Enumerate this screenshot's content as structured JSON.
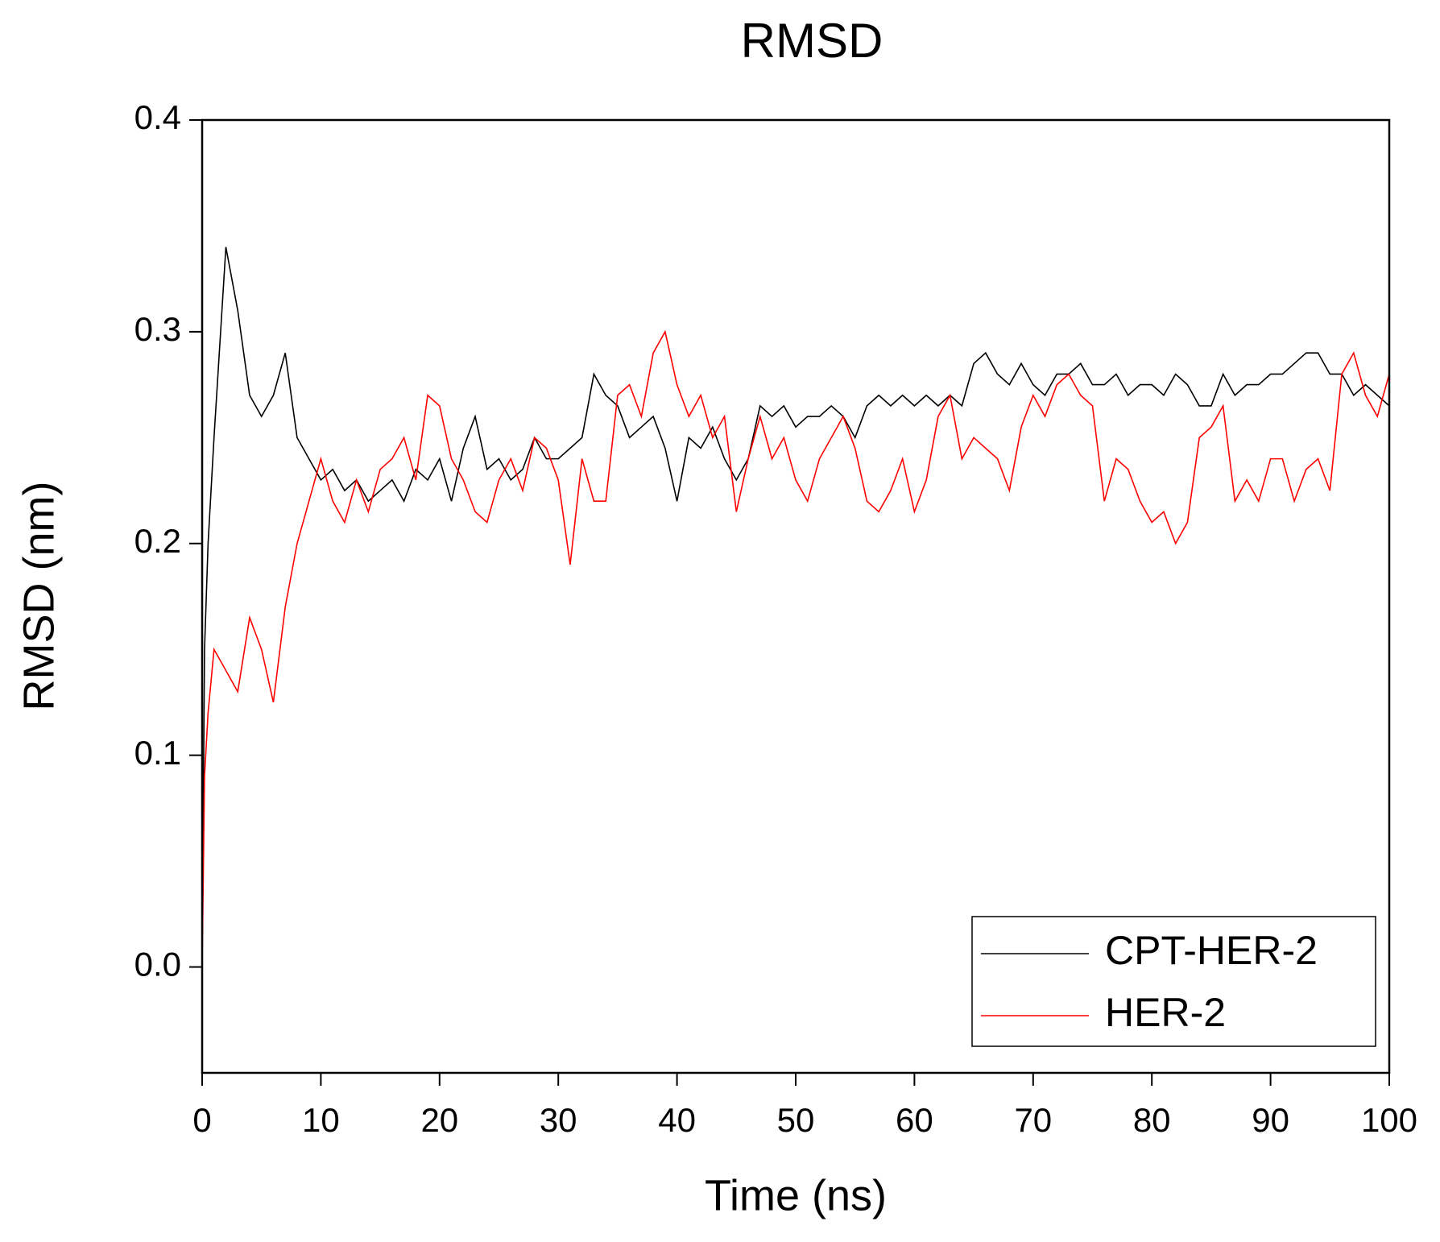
{
  "chart_data": {
    "type": "line",
    "title": "RMSD",
    "xlabel": "Time (ns)",
    "ylabel": "RMSD (nm)",
    "x": [
      0,
      0.2,
      0.5,
      1,
      2,
      3,
      4,
      5,
      6,
      7,
      8,
      9,
      10,
      11,
      12,
      13,
      14,
      15,
      16,
      17,
      18,
      19,
      20,
      21,
      22,
      23,
      24,
      25,
      26,
      27,
      28,
      29,
      30,
      31,
      32,
      33,
      34,
      35,
      36,
      37,
      38,
      39,
      40,
      41,
      42,
      43,
      44,
      45,
      46,
      47,
      48,
      49,
      50,
      51,
      52,
      53,
      54,
      55,
      56,
      57,
      58,
      59,
      60,
      61,
      62,
      63,
      64,
      65,
      66,
      67,
      68,
      69,
      70,
      71,
      72,
      73,
      74,
      75,
      76,
      77,
      78,
      79,
      80,
      81,
      82,
      83,
      84,
      85,
      86,
      87,
      88,
      89,
      90,
      91,
      92,
      93,
      94,
      95,
      96,
      97,
      98,
      99,
      100
    ],
    "series": [
      {
        "name": "CPT-HER-2",
        "color": "#000000",
        "values": [
          0.0,
          0.15,
          0.2,
          0.25,
          0.34,
          0.31,
          0.27,
          0.26,
          0.27,
          0.29,
          0.25,
          0.24,
          0.23,
          0.235,
          0.225,
          0.23,
          0.22,
          0.225,
          0.23,
          0.22,
          0.235,
          0.23,
          0.24,
          0.22,
          0.245,
          0.26,
          0.235,
          0.24,
          0.23,
          0.235,
          0.25,
          0.24,
          0.24,
          0.245,
          0.25,
          0.28,
          0.27,
          0.265,
          0.25,
          0.255,
          0.26,
          0.245,
          0.22,
          0.25,
          0.245,
          0.255,
          0.24,
          0.23,
          0.24,
          0.265,
          0.26,
          0.265,
          0.255,
          0.26,
          0.26,
          0.265,
          0.26,
          0.25,
          0.265,
          0.27,
          0.265,
          0.27,
          0.265,
          0.27,
          0.265,
          0.27,
          0.265,
          0.285,
          0.29,
          0.28,
          0.275,
          0.285,
          0.275,
          0.27,
          0.28,
          0.28,
          0.285,
          0.275,
          0.275,
          0.28,
          0.27,
          0.275,
          0.275,
          0.27,
          0.28,
          0.275,
          0.265,
          0.265,
          0.28,
          0.27,
          0.275,
          0.275,
          0.28,
          0.28,
          0.285,
          0.29,
          0.29,
          0.28,
          0.28,
          0.27,
          0.275,
          0.27,
          0.265
        ]
      },
      {
        "name": "HER-2",
        "color": "#ff0000",
        "values": [
          0.0,
          0.09,
          0.12,
          0.15,
          0.14,
          0.13,
          0.165,
          0.15,
          0.125,
          0.17,
          0.2,
          0.22,
          0.24,
          0.22,
          0.21,
          0.23,
          0.215,
          0.235,
          0.24,
          0.25,
          0.23,
          0.27,
          0.265,
          0.24,
          0.23,
          0.215,
          0.21,
          0.23,
          0.24,
          0.225,
          0.25,
          0.245,
          0.23,
          0.19,
          0.24,
          0.22,
          0.22,
          0.27,
          0.275,
          0.26,
          0.29,
          0.3,
          0.275,
          0.26,
          0.27,
          0.25,
          0.26,
          0.215,
          0.24,
          0.26,
          0.24,
          0.25,
          0.23,
          0.22,
          0.24,
          0.25,
          0.26,
          0.245,
          0.22,
          0.215,
          0.225,
          0.24,
          0.215,
          0.23,
          0.26,
          0.27,
          0.24,
          0.25,
          0.245,
          0.24,
          0.225,
          0.255,
          0.27,
          0.26,
          0.275,
          0.28,
          0.27,
          0.265,
          0.22,
          0.24,
          0.235,
          0.22,
          0.21,
          0.215,
          0.2,
          0.21,
          0.25,
          0.255,
          0.265,
          0.22,
          0.23,
          0.22,
          0.24,
          0.24,
          0.22,
          0.235,
          0.24,
          0.225,
          0.28,
          0.29,
          0.27,
          0.26,
          0.28
        ]
      }
    ],
    "xlim": [
      0,
      100
    ],
    "xticks": [
      0,
      10,
      20,
      30,
      40,
      50,
      60,
      70,
      80,
      90,
      100
    ],
    "ylim": [
      -0.05,
      0.4
    ],
    "yticks": [
      {
        "value": 0,
        "label": "0.0"
      },
      0.1,
      0.2,
      0.3,
      0.4
    ],
    "legend": "lower right",
    "grid": false
  }
}
